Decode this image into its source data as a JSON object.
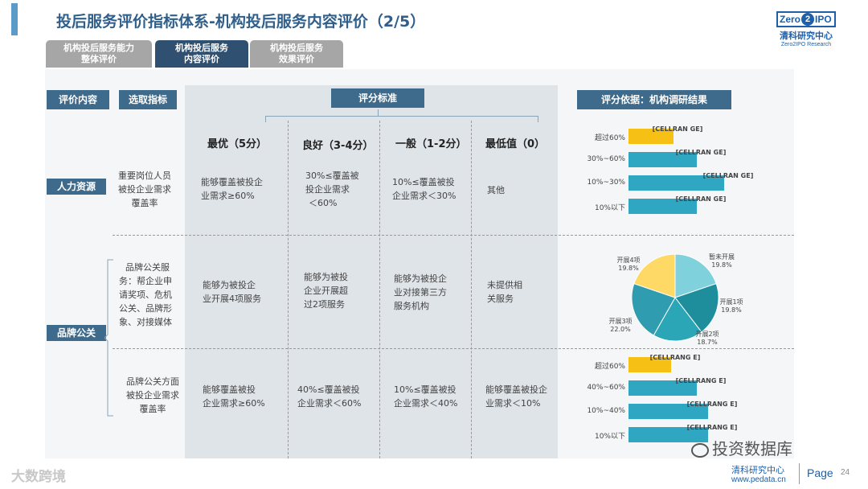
{
  "header": {
    "title": "投后服务评价指标体系-机构投后服务内容评价（2/5）",
    "logo": {
      "brand_left": "Zero",
      "brand_two": "2",
      "brand_right": "IPO",
      "cn": "清科研究中心",
      "en": "Zero2IPO Research"
    }
  },
  "tabs": [
    {
      "line1": "机构投后服务能力",
      "line2": "整体评价",
      "active": false
    },
    {
      "line1": "机构投后服务",
      "line2": "内容评价",
      "active": true
    },
    {
      "line1": "机构投后服务",
      "line2": "效果评价",
      "active": false
    }
  ],
  "table": {
    "headers": {
      "content": "评价内容",
      "indicator": "选取指标",
      "criteria": "评分标准",
      "basis": "评分依据：机构调研结果"
    },
    "columns": [
      "最优（5分）",
      "良好（3-4分）",
      "一般（1-2分）",
      "最低值（0）"
    ],
    "categories": {
      "hr": "人力资源",
      "brand": "品牌公关"
    },
    "rows": [
      {
        "indicator": [
          "重要岗位人员",
          "被投企业需求",
          "覆盖率"
        ],
        "cells": [
          [
            "能够覆盖被投企",
            "业需求≥60%"
          ],
          [
            "30%≤覆盖被",
            "投企业需求",
            "＜60%"
          ],
          [
            "10%≤覆盖被投",
            "企业需求＜30%"
          ],
          [
            "其他"
          ]
        ]
      },
      {
        "indicator": [
          "品牌公关服",
          "务：帮企业申",
          "请奖项、危机",
          "公关、品牌形",
          "象、对接媒体"
        ],
        "cells": [
          [
            "能够为被投企",
            "业开展4项服务"
          ],
          [
            "能够为被投",
            "企业开展超",
            "过2项服务"
          ],
          [
            "能够为被投企",
            "业对接第三方",
            "服务机构"
          ],
          [
            "未提供相",
            "关服务"
          ]
        ]
      },
      {
        "indicator": [
          "品牌公关方面",
          "被投企业需求",
          "覆盖率"
        ],
        "cells": [
          [
            "能够覆盖被投",
            "企业需求≥60%"
          ],
          [
            "40%≤覆盖被投",
            "企业需求＜60%"
          ],
          [
            "10%≤覆盖被投",
            "企业需求＜40%"
          ],
          [
            "能够覆盖被投企",
            "业需求＜10%"
          ]
        ]
      }
    ]
  },
  "chart_data": [
    {
      "type": "bar",
      "orientation": "horizontal",
      "categories": [
        "超过60%",
        "30%~60%",
        "10%~30%",
        "10%以下"
      ],
      "values": [
        0.33,
        0.5,
        0.7,
        0.5
      ],
      "data_labels": [
        "[CELLRAN GE]",
        "[CELLRAN GE]",
        "[CELLRAN GE]",
        "[CELLRAN GE]"
      ],
      "highlight_index": 0,
      "colors": {
        "bar": "#2fa7c3",
        "highlight": "#f6c014"
      }
    },
    {
      "type": "pie",
      "labels": [
        "暂未开展",
        "开展1项",
        "开展2项",
        "开展3项",
        "开展4项"
      ],
      "values": [
        19.8,
        19.8,
        18.7,
        22.0,
        19.8
      ],
      "value_labels": [
        "19.8%",
        "19.8%",
        "18.7%",
        "22.0%",
        "19.8%"
      ],
      "colors": [
        "#7fd1dc",
        "#1f8e9c",
        "#2aa6b6",
        "#2f9cb0",
        "#ffd966"
      ]
    },
    {
      "type": "bar",
      "orientation": "horizontal",
      "categories": [
        "超过60%",
        "40%~60%",
        "10%~40%",
        "10%以下"
      ],
      "values": [
        0.31,
        0.5,
        0.58,
        0.58
      ],
      "data_labels": [
        "[CELLRANG E]",
        "[CELLRANG E]",
        "[CELLRANG E]",
        "[CELLRANG E]"
      ],
      "highlight_index": 0,
      "colors": {
        "bar": "#2fa7c3",
        "highlight": "#f6c014"
      }
    }
  ],
  "footer": {
    "brand": "大数跨境",
    "watermark": "投资数据库",
    "cn": "清科研究中心",
    "url": "www.pedata.cn",
    "page_label": "Page",
    "page_number": "24"
  }
}
